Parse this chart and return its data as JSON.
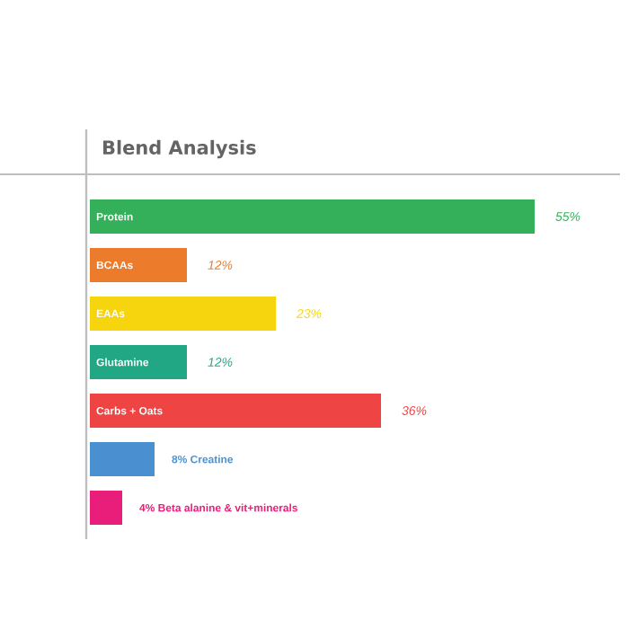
{
  "chart_data": {
    "type": "bar",
    "orientation": "horizontal",
    "title": "Blend Analysis",
    "categories": [
      "Protein",
      "BCAAs",
      "EAAs",
      "Glutamine",
      "Carbs + Oats",
      "Creatine",
      "Beta alanine & vit+minerals"
    ],
    "values": [
      55,
      12,
      23,
      12,
      36,
      8,
      4
    ],
    "value_labels": [
      "55%",
      "12%",
      "23%",
      "12%",
      "36%",
      "8%",
      "4%"
    ],
    "colors": [
      "#34b05a",
      "#ec7c2b",
      "#f6d40e",
      "#22a784",
      "#ef4444",
      "#4a90d0",
      "#e91e7a"
    ]
  }
}
